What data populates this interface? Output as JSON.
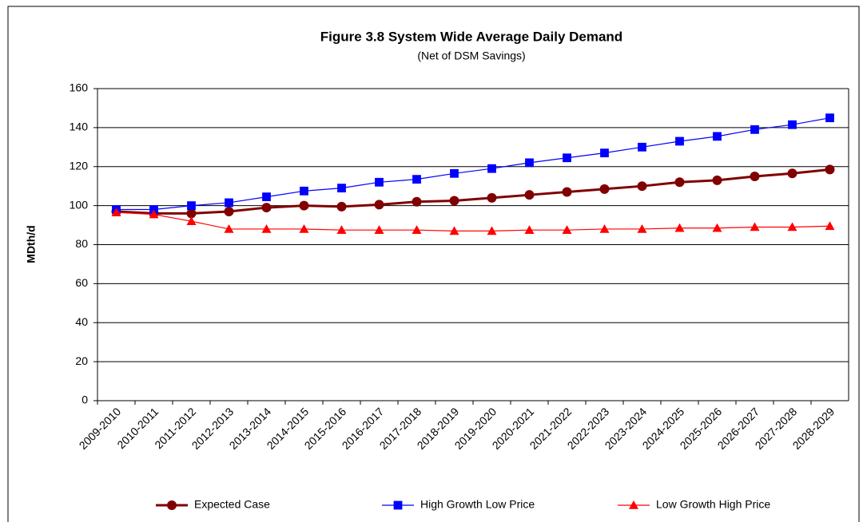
{
  "chart_data": {
    "type": "line",
    "title": "Figure 3.8  System Wide Average Daily Demand",
    "subtitle": "(Net of DSM Savings)",
    "y_label": "MDth/d",
    "categories": [
      "2009-2010",
      "2010-2011",
      "2011-2012",
      "2012-2013",
      "2013-2014",
      "2014-2015",
      "2015-2016",
      "2016-2017",
      "2017-2018",
      "2018-2019",
      "2019-2020",
      "2020-2021",
      "2021-2022",
      "2022-2023",
      "2023-2024",
      "2024-2025",
      "2025-2026",
      "2026-2027",
      "2027-2028",
      "2028-2029"
    ],
    "series": [
      {
        "name": "Expected Case",
        "color": "#800000",
        "marker": "circle",
        "values": [
          97,
          96,
          96,
          97,
          99,
          100,
          99.5,
          100.5,
          102,
          102.5,
          104,
          105.5,
          107,
          108.5,
          110,
          112,
          113,
          115,
          116.5,
          118.5
        ]
      },
      {
        "name": "High Growth Low Price",
        "color": "#0000ff",
        "marker": "square",
        "values": [
          98,
          98,
          100,
          101.5,
          104.5,
          107.5,
          109,
          112,
          113.5,
          116.5,
          119,
          122,
          124.5,
          127,
          130,
          133,
          135.5,
          139,
          141.5,
          145
        ]
      },
      {
        "name": "Low Growth High Price",
        "color": "#ff0000",
        "marker": "triangle",
        "values": [
          96.5,
          95.5,
          92,
          88,
          88,
          88,
          87.5,
          87.5,
          87.5,
          87,
          87,
          87.5,
          87.5,
          88,
          88,
          88.5,
          88.5,
          89,
          89,
          89.5
        ]
      }
    ],
    "ylim": [
      0,
      160
    ],
    "yticks": [
      0,
      20,
      40,
      60,
      80,
      100,
      120,
      140,
      160
    ],
    "grid": true,
    "legend": "bottom"
  }
}
